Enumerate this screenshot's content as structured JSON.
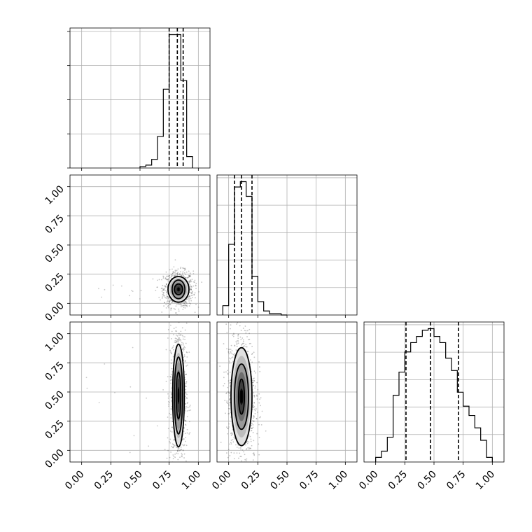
{
  "chart_data": {
    "type": "corner",
    "ticks": [
      "0.00",
      "0.25",
      "0.50",
      "0.75",
      "1.00"
    ],
    "tick_values": [
      0,
      0.25,
      0.5,
      0.75,
      1.0
    ],
    "range": [
      -0.1,
      1.1
    ],
    "grid": true,
    "diagonal": [
      {
        "param_index": 0,
        "bin_edges": [
          0.5,
          0.55,
          0.6,
          0.65,
          0.7,
          0.75,
          0.8,
          0.85,
          0.9,
          0.95
        ],
        "counts": [
          0.01,
          0.02,
          0.06,
          0.22,
          0.55,
          0.93,
          0.93,
          0.61,
          0.08
        ],
        "quantiles": [
          0.75,
          0.82,
          0.87
        ]
      },
      {
        "param_index": 1,
        "bin_edges": [
          -0.05,
          0.0,
          0.05,
          0.1,
          0.15,
          0.2,
          0.25,
          0.3,
          0.35,
          0.4,
          0.45,
          0.5
        ],
        "counts": [
          0.07,
          0.53,
          0.96,
          1.0,
          0.89,
          0.29,
          0.1,
          0.03,
          0.01,
          0.01,
          0.0
        ],
        "quantiles": [
          0.05,
          0.11,
          0.2
        ]
      },
      {
        "param_index": 2,
        "bin_edges": [
          0.0,
          0.05,
          0.1,
          0.15,
          0.2,
          0.25,
          0.3,
          0.35,
          0.4,
          0.45,
          0.5,
          0.55,
          0.6,
          0.65,
          0.7,
          0.75,
          0.8,
          0.85,
          0.9,
          0.95,
          1.0
        ],
        "counts": [
          0.03,
          0.07,
          0.16,
          0.43,
          0.58,
          0.71,
          0.77,
          0.81,
          0.85,
          0.86,
          0.81,
          0.77,
          0.67,
          0.59,
          0.45,
          0.36,
          0.3,
          0.22,
          0.14,
          0.03
        ],
        "quantiles": [
          0.26,
          0.47,
          0.71
        ]
      }
    ],
    "panels_2d": [
      {
        "x_param": 0,
        "y_param": 1,
        "center": [
          0.83,
          0.12
        ],
        "contours": [
          [
            0.035,
            0.045
          ],
          [
            0.055,
            0.08
          ],
          [
            0.09,
            0.11
          ]
        ],
        "density_rect": [
          0.055,
          0.1
        ]
      },
      {
        "x_param": 0,
        "y_param": 2,
        "center": [
          0.83,
          0.47
        ],
        "contours": [
          [
            0.02,
            0.2
          ],
          [
            0.035,
            0.33
          ],
          [
            0.05,
            0.44
          ]
        ],
        "density_rect": [
          0.05,
          0.46
        ]
      },
      {
        "x_param": 1,
        "y_param": 2,
        "center": [
          0.11,
          0.46
        ],
        "contours": [
          [
            0.025,
            0.15
          ],
          [
            0.06,
            0.28
          ],
          [
            0.09,
            0.42
          ]
        ],
        "density_rect": [
          0.085,
          0.44
        ]
      }
    ]
  }
}
